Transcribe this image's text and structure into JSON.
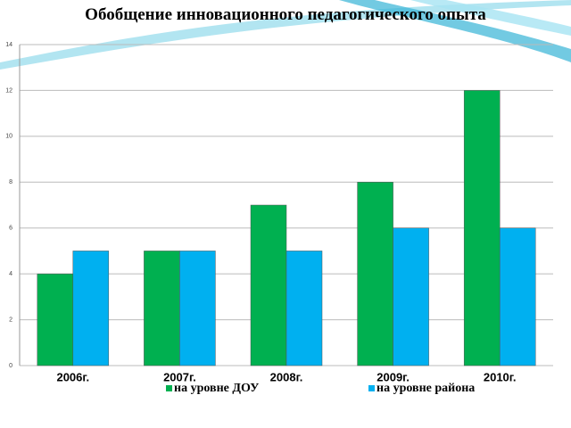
{
  "chart_data": {
    "type": "bar",
    "title": "Обобщение инновационного педагогического опыта",
    "categories": [
      "2006г.",
      "2007г.",
      "2008г.",
      "2009г.",
      "2010г."
    ],
    "series": [
      {
        "name": "на уровне ДОУ",
        "color": "#00b050",
        "values": [
          4,
          5,
          7,
          8,
          12
        ]
      },
      {
        "name": "на уровне района",
        "color": "#00b0f0",
        "values": [
          5,
          5,
          5,
          6,
          6
        ]
      }
    ],
    "ylim": [
      0,
      14
    ],
    "yticks": [
      0,
      2,
      4,
      6,
      8,
      10,
      12,
      14
    ],
    "grid": true
  }
}
